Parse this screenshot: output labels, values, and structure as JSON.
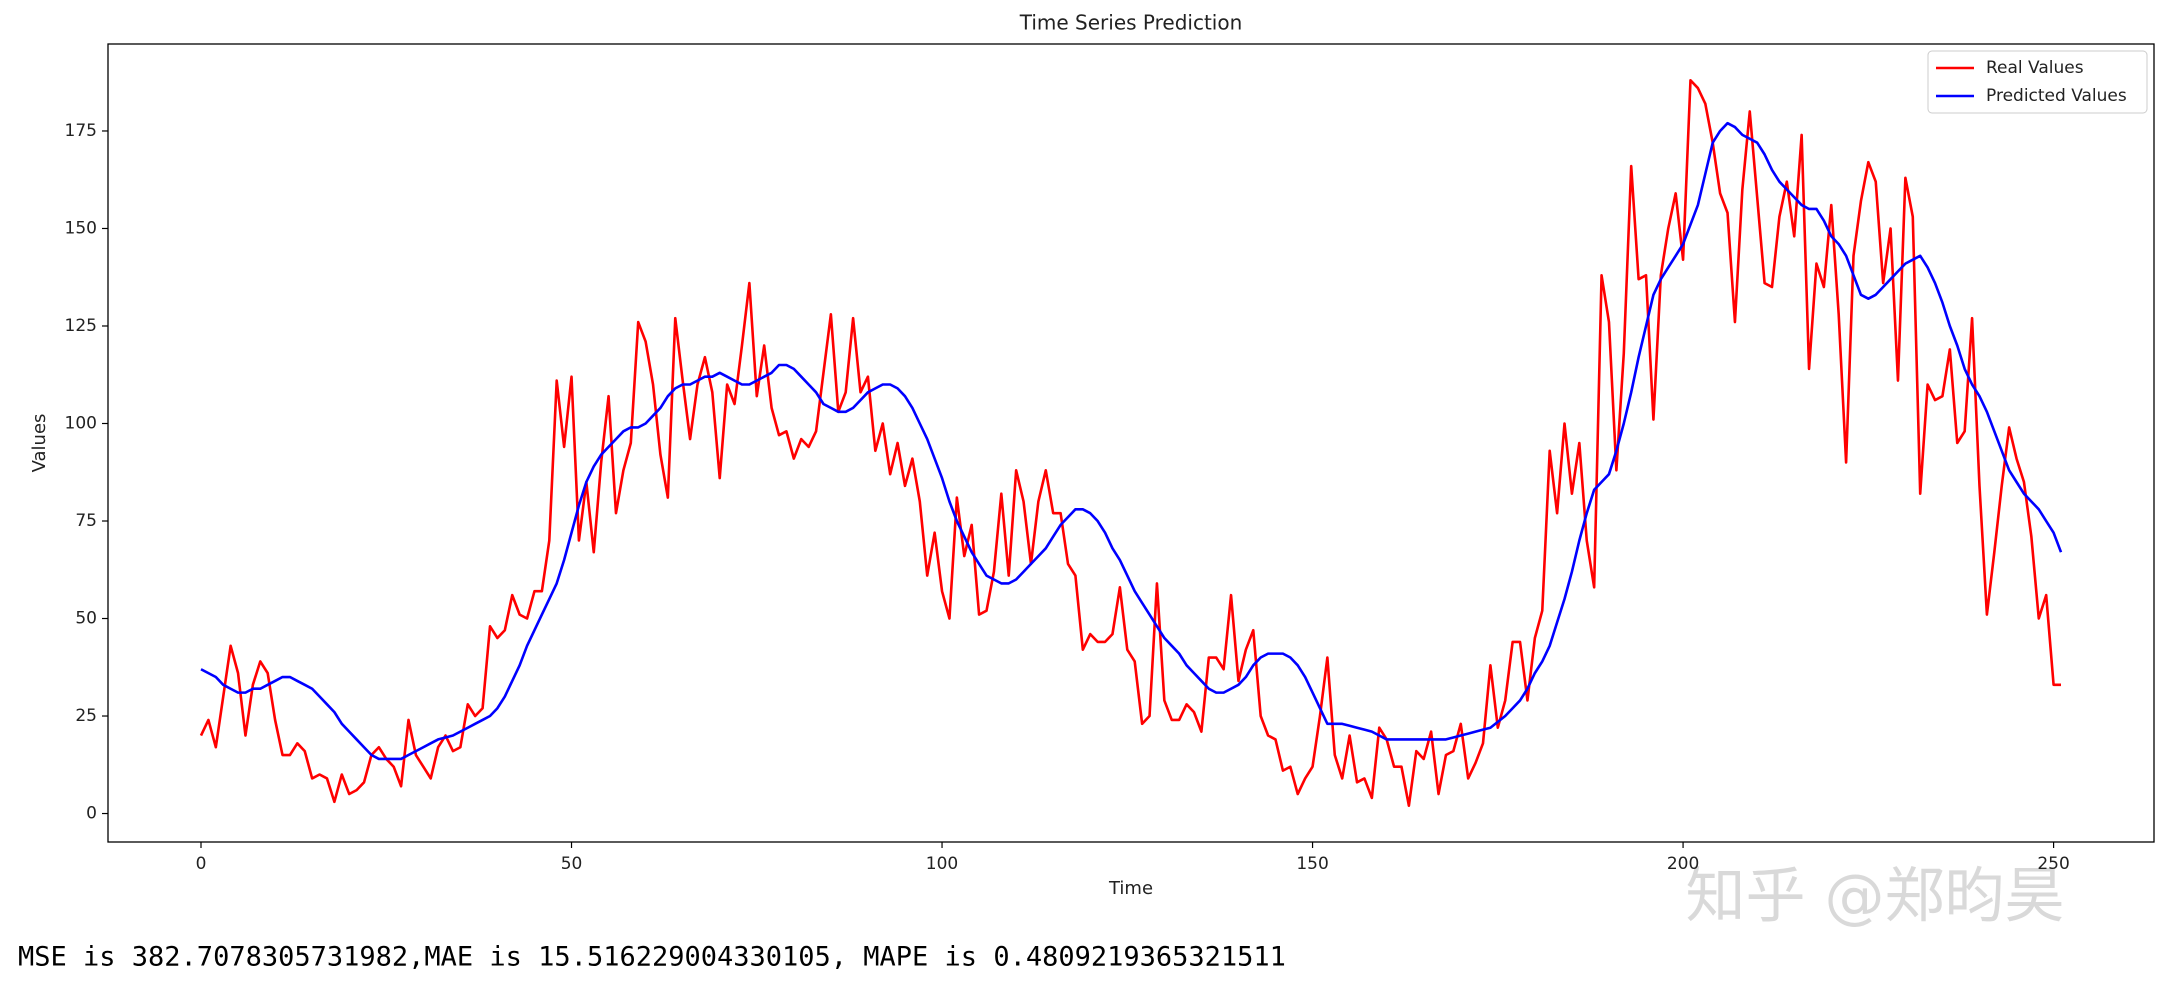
{
  "chart_data": {
    "type": "line",
    "title": "Time Series Prediction",
    "x_label": "Time",
    "y_label": "Values",
    "x": [
      0,
      1,
      2,
      3,
      4,
      5,
      6,
      7,
      8,
      9,
      10,
      11,
      12,
      13,
      14,
      15,
      16,
      17,
      18,
      19,
      20,
      21,
      22,
      23,
      24,
      25,
      26,
      27,
      28,
      29,
      30,
      31,
      32,
      33,
      34,
      35,
      36,
      37,
      38,
      39,
      40,
      41,
      42,
      43,
      44,
      45,
      46,
      47,
      48,
      49,
      50,
      51,
      52,
      53,
      54,
      55,
      56,
      57,
      58,
      59,
      60,
      61,
      62,
      63,
      64,
      65,
      66,
      67,
      68,
      69,
      70,
      71,
      72,
      73,
      74,
      75,
      76,
      77,
      78,
      79,
      80,
      81,
      82,
      83,
      84,
      85,
      86,
      87,
      88,
      89,
      90,
      91,
      92,
      93,
      94,
      95,
      96,
      97,
      98,
      99,
      100,
      101,
      102,
      103,
      104,
      105,
      106,
      107,
      108,
      109,
      110,
      111,
      112,
      113,
      114,
      115,
      116,
      117,
      118,
      119,
      120,
      121,
      122,
      123,
      124,
      125,
      126,
      127,
      128,
      129,
      130,
      131,
      132,
      133,
      134,
      135,
      136,
      137,
      138,
      139,
      140,
      141,
      142,
      143,
      144,
      145,
      146,
      147,
      148,
      149,
      150,
      151,
      152,
      153,
      154,
      155,
      156,
      157,
      158,
      159,
      160,
      161,
      162,
      163,
      164,
      165,
      166,
      167,
      168,
      169,
      170,
      171,
      172,
      173,
      174,
      175,
      176,
      177,
      178,
      179,
      180,
      181,
      182,
      183,
      184,
      185,
      186,
      187,
      188,
      189,
      190,
      191,
      192,
      193,
      194,
      195,
      196,
      197,
      198,
      199,
      200,
      201,
      202,
      203,
      204,
      205,
      206,
      207,
      208,
      209,
      210,
      211,
      212,
      213,
      214,
      215,
      216,
      217,
      218,
      219,
      220,
      221,
      222,
      223,
      224,
      225,
      226,
      227,
      228,
      229,
      230,
      231,
      232,
      233,
      234,
      235,
      236,
      237,
      238,
      239,
      240,
      241,
      242,
      243,
      244,
      245,
      246,
      247,
      248,
      249,
      250,
      251
    ],
    "series": [
      {
        "name": "Real Values",
        "color": "#ff0000",
        "values": [
          20,
          24,
          17,
          30,
          43,
          36,
          20,
          33,
          39,
          36,
          24,
          15,
          15,
          18,
          16,
          9,
          10,
          9,
          3,
          10,
          5,
          6,
          8,
          15,
          17,
          14,
          12,
          7,
          24,
          15,
          12,
          9,
          17,
          20,
          16,
          17,
          28,
          25,
          27,
          48,
          45,
          47,
          56,
          51,
          50,
          57,
          57,
          70,
          111,
          94,
          112,
          70,
          85,
          67,
          90,
          107,
          77,
          88,
          95,
          126,
          121,
          110,
          92,
          81,
          127,
          111,
          96,
          110,
          117,
          108,
          86,
          110,
          105,
          120,
          136,
          107,
          120,
          104,
          97,
          98,
          91,
          96,
          94,
          98,
          113,
          128,
          103,
          108,
          127,
          108,
          112,
          93,
          100,
          87,
          95,
          84,
          91,
          80,
          61,
          72,
          57,
          50,
          81,
          66,
          74,
          51,
          52,
          62,
          82,
          61,
          88,
          80,
          64,
          80,
          88,
          77,
          77,
          64,
          61,
          42,
          46,
          44,
          44,
          46,
          58,
          42,
          39,
          23,
          25,
          59,
          29,
          24,
          24,
          28,
          26,
          21,
          40,
          40,
          37,
          56,
          34,
          42,
          47,
          25,
          20,
          19,
          11,
          12,
          5,
          9,
          12,
          25,
          40,
          15,
          9,
          20,
          8,
          9,
          4,
          22,
          19,
          12,
          12,
          2,
          16,
          14,
          21,
          5,
          15,
          16,
          23,
          9,
          13,
          18,
          38,
          22,
          29,
          44,
          44,
          29,
          45,
          52,
          93,
          77,
          100,
          82,
          95,
          70,
          58,
          138,
          126,
          88,
          118,
          166,
          137,
          138,
          101,
          138,
          150,
          159,
          142,
          188,
          186,
          182,
          172,
          159,
          154,
          126,
          160,
          180,
          158,
          136,
          135,
          153,
          162,
          148,
          174,
          114,
          141,
          135,
          156,
          128,
          90,
          143,
          157,
          167,
          162,
          136,
          150,
          111,
          163,
          153,
          82,
          110,
          106,
          107,
          119,
          95,
          98,
          127,
          84,
          51,
          67,
          84,
          99,
          91,
          85,
          71,
          50,
          56,
          33,
          33
        ]
      },
      {
        "name": "Predicted Values",
        "color": "#0000ff",
        "values": [
          37,
          36,
          35,
          33,
          32,
          31,
          31,
          32,
          32,
          33,
          34,
          35,
          35,
          34,
          33,
          32,
          30,
          28,
          26,
          23,
          21,
          19,
          17,
          15,
          14,
          14,
          14,
          14,
          15,
          16,
          17,
          18,
          19,
          19.5,
          20,
          21,
          22,
          23,
          24,
          25,
          27,
          30,
          34,
          38,
          43,
          47,
          51,
          55,
          59,
          65,
          72,
          79,
          85,
          89,
          92,
          94,
          96,
          98,
          99,
          99,
          100,
          102,
          104,
          107,
          109,
          110,
          110,
          111,
          112,
          112,
          113,
          112,
          111,
          110,
          110,
          111,
          112,
          113,
          115,
          115,
          114,
          112,
          110,
          108,
          105,
          104,
          103,
          103,
          104,
          106,
          108,
          109,
          110,
          110,
          109,
          107,
          104,
          100,
          96,
          91,
          86,
          80,
          75,
          71,
          67,
          64,
          61,
          60,
          59,
          59,
          60,
          62,
          64,
          66,
          68,
          71,
          74,
          76,
          78,
          78,
          77,
          75,
          72,
          68,
          65,
          61,
          57,
          54,
          51,
          48,
          45,
          43,
          41,
          38,
          36,
          34,
          32,
          31,
          31,
          32,
          33,
          35,
          38,
          40,
          41,
          41,
          41,
          40,
          38,
          35,
          31,
          27,
          23,
          23,
          23,
          22.5,
          22,
          21.5,
          21,
          20,
          19,
          19,
          19,
          19,
          19,
          19,
          19,
          19,
          19,
          19.5,
          20,
          20.5,
          21,
          21.5,
          22,
          23.5,
          25,
          27,
          29,
          32,
          36,
          39,
          43,
          49,
          55,
          62,
          70,
          77,
          83,
          85,
          87,
          93,
          100,
          108,
          117,
          125,
          133,
          137,
          140,
          143,
          146,
          151,
          156,
          164,
          172,
          175,
          177,
          176,
          174,
          173,
          172,
          169,
          165,
          162,
          160,
          158,
          156,
          155,
          155,
          152,
          148,
          146,
          143,
          138,
          133,
          132,
          133,
          135,
          137,
          139,
          141,
          142,
          143,
          140,
          136,
          131,
          125,
          120,
          114,
          110,
          107,
          103,
          98,
          93,
          88,
          85,
          82,
          80,
          78,
          75,
          72,
          67
        ]
      }
    ],
    "xlim": [
      -12.55,
      263.55
    ],
    "ylim": [
      -7.3,
      197.3
    ],
    "xticks": [
      0,
      50,
      100,
      150,
      200,
      250
    ],
    "yticks": [
      0,
      25,
      50,
      75,
      100,
      125,
      150,
      175
    ],
    "legend": "upper right",
    "grid": false
  },
  "metrics_text": "MSE is 382.7078305731982,MAE is 15.516229004330105, MAPE is 0.4809219365321511",
  "watermark": "知乎 @郑昀昊"
}
